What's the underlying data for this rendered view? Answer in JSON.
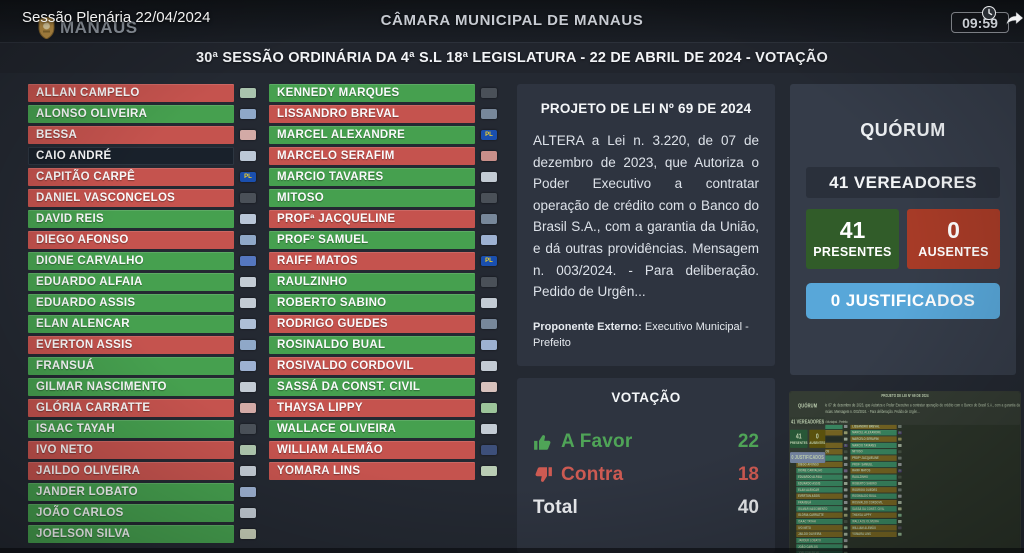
{
  "overlay": {
    "session_label": "Sessão Plenária 22/04/2024",
    "time": "09:59"
  },
  "header": {
    "logo_text": "MANAUS",
    "title": "CÂMARA MUNICIPAL DE MANAUS"
  },
  "session_bar": {
    "title": "30ª SESSÃO ORDINÁRIA DA 4ª S.L 18ª LEGISLATURA - 22 DE ABRIL DE 2024 - VOTAÇÃO"
  },
  "colors": {
    "favor": "#46a04f",
    "contra": "#c5534e",
    "no_vote_row": "#19212b",
    "pl_badge": "#1a4fae",
    "presentes_box": "#315c29",
    "ausentes_box": "#a73b27",
    "justificados_box": "#58a7d9"
  },
  "members": {
    "column1": [
      {
        "name": "ALLAN CAMPELO",
        "vote": "contra",
        "badge": "#a9c3ad"
      },
      {
        "name": "ALONSO OLIVEIRA",
        "vote": "favor",
        "badge": "#8fa8c8"
      },
      {
        "name": "BESSA",
        "vote": "contra",
        "badge": "#d3aaa6"
      },
      {
        "name": "CAIO ANDRÉ",
        "vote": "none",
        "badge": "#bcc8d6"
      },
      {
        "name": "CAPITÃO CARPÊ",
        "vote": "contra",
        "badge": "PL"
      },
      {
        "name": "DANIEL VASCONCELOS",
        "vote": "contra",
        "badge": "#4a5058"
      },
      {
        "name": "DAVID REIS",
        "vote": "favor",
        "badge": "#b9c6d8"
      },
      {
        "name": "DIEGO AFONSO",
        "vote": "contra",
        "badge": "#8fa8c8"
      },
      {
        "name": "DIONE CARVALHO",
        "vote": "favor",
        "badge": "#5577c0"
      },
      {
        "name": "EDUARDO ALFAIA",
        "vote": "favor",
        "badge": "#c3cbd4"
      },
      {
        "name": "EDUARDO ASSIS",
        "vote": "favor",
        "badge": "#c3cbd4"
      },
      {
        "name": "ELAN ALENCAR",
        "vote": "favor",
        "badge": "#aebfd6"
      },
      {
        "name": "EVERTON ASSIS",
        "vote": "contra",
        "badge": "#8fa8c8"
      },
      {
        "name": "FRANSUÁ",
        "vote": "favor",
        "badge": "#9db1d2"
      },
      {
        "name": "GILMAR NASCIMENTO",
        "vote": "favor",
        "badge": "#c3cbd4"
      },
      {
        "name": "GLÓRIA CARRATTE",
        "vote": "contra",
        "badge": "#d3aaa6"
      },
      {
        "name": "ISAAC TAYAH",
        "vote": "favor",
        "badge": "#4a5058"
      },
      {
        "name": "IVO NETO",
        "vote": "contra",
        "badge": "#aec6ad"
      },
      {
        "name": "JAILDO OLIVEIRA",
        "vote": "contra",
        "badge": "#c3cbd4"
      },
      {
        "name": "JANDER LOBATO",
        "vote": "favor",
        "badge": "#9db1d2"
      },
      {
        "name": "JOÃO CARLOS",
        "vote": "favor",
        "badge": "#c3cbd4"
      },
      {
        "name": "JOELSON SILVA",
        "vote": "favor",
        "badge": "#c8cfb9"
      }
    ],
    "column2": [
      {
        "name": "KENNEDY MARQUES",
        "vote": "favor",
        "badge": "#4a5058"
      },
      {
        "name": "LISSANDRO BREVAL",
        "vote": "contra",
        "badge": "#77879a"
      },
      {
        "name": "MARCEL ALEXANDRE",
        "vote": "favor",
        "badge": "PL"
      },
      {
        "name": "MARCELO SERAFIM",
        "vote": "contra",
        "badge": "#c98f8a"
      },
      {
        "name": "MARCIO TAVARES",
        "vote": "favor",
        "badge": "#c3cbd4"
      },
      {
        "name": "MITOSO",
        "vote": "favor",
        "badge": "#4a5058"
      },
      {
        "name": "PROFª JACQUELINE",
        "vote": "contra",
        "badge": "#77879a"
      },
      {
        "name": "PROFº SAMUEL",
        "vote": "favor",
        "badge": "#9db1d2"
      },
      {
        "name": "RAIFF MATOS",
        "vote": "contra",
        "badge": "PL"
      },
      {
        "name": "RAULZINHO",
        "vote": "favor",
        "badge": "#4a5058"
      },
      {
        "name": "ROBERTO SABINO",
        "vote": "favor",
        "badge": "#c3cbd4"
      },
      {
        "name": "RODRIGO GUEDES",
        "vote": "contra",
        "badge": "#77879a"
      },
      {
        "name": "ROSINALDO BUAL",
        "vote": "favor",
        "badge": "#9db1d2"
      },
      {
        "name": "ROSIVALDO CORDOVIL",
        "vote": "contra",
        "badge": "#c3cbd4"
      },
      {
        "name": "SASSÁ DA CONST. CIVIL",
        "vote": "favor",
        "badge": "#d8c2bd"
      },
      {
        "name": "THAYSA LIPPY",
        "vote": "contra",
        "badge": "#9cc49a"
      },
      {
        "name": "WALLACE OLIVEIRA",
        "vote": "favor",
        "badge": "#c3cbd4"
      },
      {
        "name": "WILLIAM ALEMÃO",
        "vote": "contra",
        "badge": "#3d4f7a"
      },
      {
        "name": "YOMARA LINS",
        "vote": "contra",
        "badge": "#b9ccb4"
      }
    ]
  },
  "project": {
    "title": "PROJETO DE LEI Nº 69 DE 2024",
    "body": "ALTERA a Lei n. 3.220, de 07 de dezembro de 2023, que Autoriza o Poder Executivo a contratar operação de crédito com o Banco do Brasil S.A., com a garantia da União, e dá outras providências. Mensagem n. 003/2024. - Para deliberação. Pedido de Urgên...",
    "proponent_label": "Proponente Externo:",
    "proponent_value": " Executivo Municipal - Prefeito"
  },
  "voting": {
    "title": "VOTAÇÃO",
    "favor_label": "A Favor",
    "favor_count": 22,
    "contra_label": "Contra",
    "contra_count": 18,
    "total_label": "Total",
    "total_count": 40
  },
  "quorum": {
    "title": "QUÓRUM",
    "vereadores_label": "41 VEREADORES",
    "presentes_count": 41,
    "presentes_label": "PRESENTES",
    "ausentes_count": 0,
    "ausentes_label": "AUSENTES",
    "justificados_label": "0 JUSTIFICADOS"
  }
}
